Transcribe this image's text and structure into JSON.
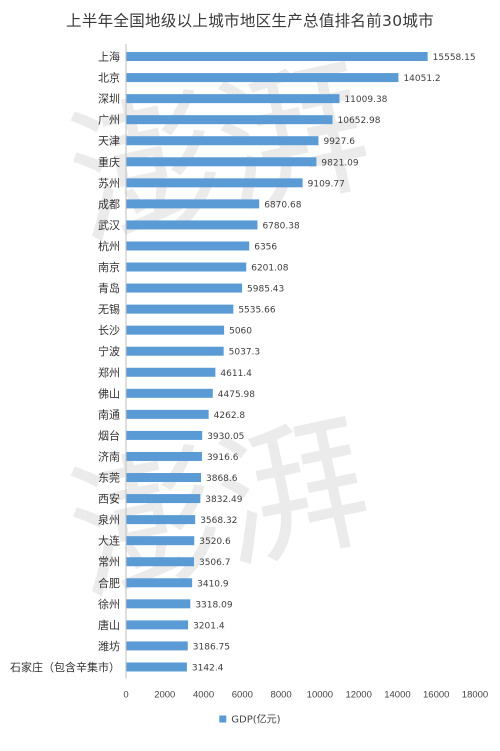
{
  "chart_data": {
    "type": "bar",
    "orientation": "horizontal",
    "title": "上半年全国地级以上城市地区生产总值排名前30城市",
    "categories": [
      "上海",
      "北京",
      "深圳",
      "广州",
      "天津",
      "重庆",
      "苏州",
      "成都",
      "武汉",
      "杭州",
      "南京",
      "青岛",
      "无锡",
      "长沙",
      "宁波",
      "郑州",
      "佛山",
      "南通",
      "烟台",
      "济南",
      "东莞",
      "西安",
      "泉州",
      "大连",
      "常州",
      "合肥",
      "徐州",
      "唐山",
      "潍坊",
      "石家庄（包含辛集市）"
    ],
    "series": [
      {
        "name": "GDP(亿元)",
        "values": [
          15558.15,
          14051.2,
          11009.38,
          10652.98,
          9927.6,
          9821.09,
          9109.77,
          6870.68,
          6780.38,
          6356,
          6201.08,
          5985.43,
          5535.66,
          5060,
          5037.3,
          4611.4,
          4475.98,
          4262.8,
          3930.05,
          3916.6,
          3868.6,
          3832.49,
          3568.32,
          3520.6,
          3506.7,
          3410.9,
          3318.09,
          3201.4,
          3186.75,
          3142.4
        ],
        "value_labels": [
          "15558.15",
          "14051.2",
          "11009.38",
          "10652.98",
          "9927.6",
          "9821.09",
          "9109.77",
          "6870.68",
          "6780.38",
          "6356",
          "6201.08",
          "5985.43",
          "5535.66",
          "5060",
          "5037.3",
          "4611.4",
          "4475.98",
          "4262.8",
          "3930.05",
          "3916.6",
          "3868.6",
          "3832.49",
          "3568.32",
          "3520.6",
          "3506.7",
          "3410.9",
          "3318.09",
          "3201.4",
          "3186.75",
          "3142.4"
        ]
      }
    ],
    "xlim": [
      0,
      18000
    ],
    "xticks": [
      0,
      2000,
      4000,
      6000,
      8000,
      10000,
      12000,
      14000,
      16000,
      18000
    ],
    "grid": false,
    "legend": "bottom",
    "bar_color": "#5b9bd5"
  }
}
